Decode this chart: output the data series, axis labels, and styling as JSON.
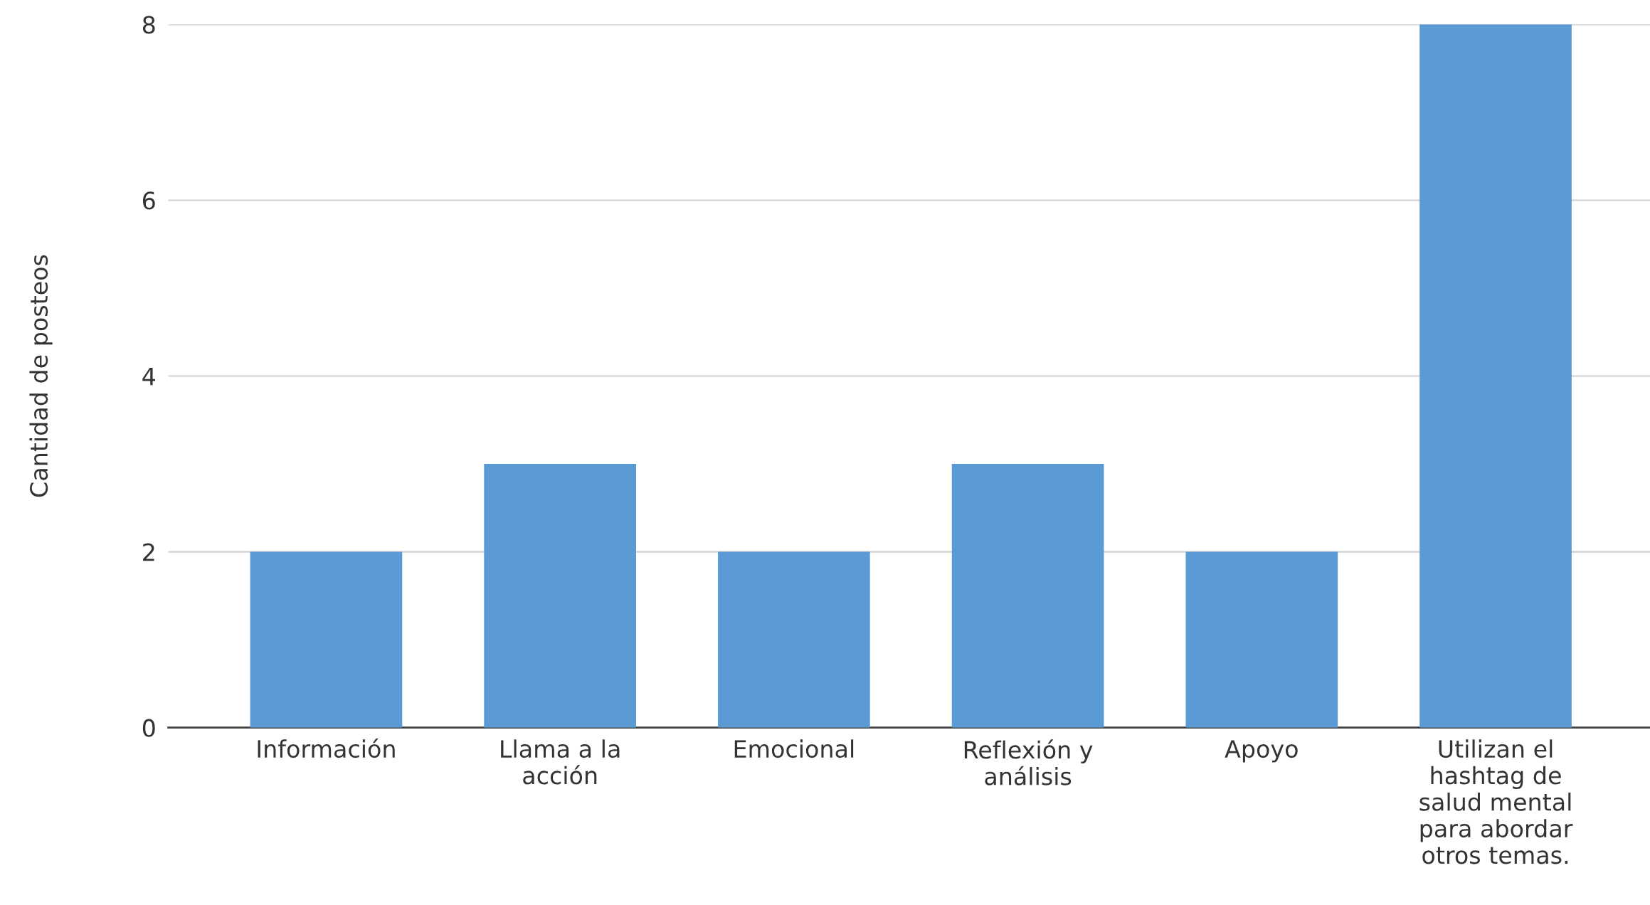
{
  "chart_data": {
    "type": "bar",
    "ylabel": "Cantidad de posteos",
    "categories": [
      "Información",
      "Llama a la\nacción",
      "Emocional",
      "Reflexión y\nanálisis",
      "Apoyo",
      "Utilizan el\nhashtag de\nsalud mental\npara abordar\notros temas."
    ],
    "values": [
      2,
      3,
      2,
      3,
      2,
      8
    ],
    "color": "#5b9bd5",
    "ylim": [
      0,
      8
    ],
    "yticks": [
      0,
      2,
      4,
      6,
      8
    ],
    "grid": "y"
  }
}
